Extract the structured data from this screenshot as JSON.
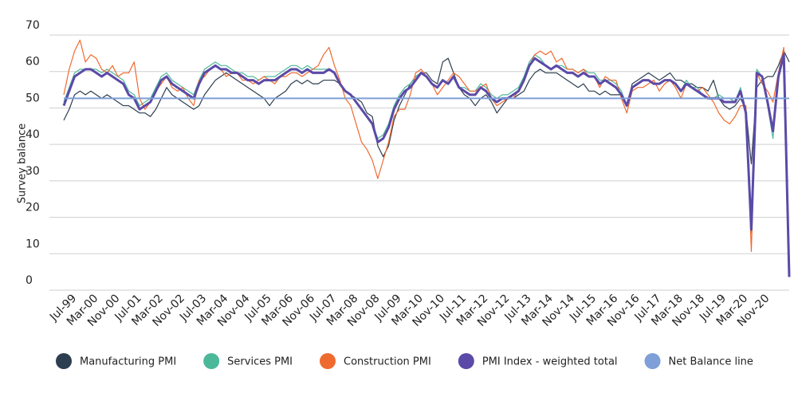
{
  "chart_data": {
    "type": "line",
    "ylabel": "Survey balance",
    "categories": [
      null,
      null,
      "Jul-99",
      null,
      null,
      null,
      "Mar-00",
      null,
      null,
      null,
      "Nov-00",
      null,
      null,
      null,
      "Jul-01",
      null,
      null,
      null,
      "Mar-02",
      null,
      null,
      null,
      "Nov-02",
      null,
      null,
      null,
      "Jul-03",
      null,
      null,
      null,
      "Mar-04",
      null,
      null,
      null,
      "Nov-04",
      null,
      null,
      null,
      "Jul-05",
      null,
      null,
      null,
      "Mar-06",
      null,
      null,
      null,
      "Nov-06",
      null,
      null,
      null,
      "Jul-07",
      null,
      null,
      null,
      "Mar-08",
      null,
      null,
      null,
      "Nov-08",
      null,
      null,
      null,
      "Jul-09",
      null,
      null,
      null,
      "Mar-10",
      null,
      null,
      null,
      "Nov-10",
      null,
      null,
      null,
      "Jul-11",
      null,
      null,
      null,
      "Mar-12",
      null,
      null,
      null,
      "Nov-12",
      null,
      null,
      null,
      "Jul-13",
      null,
      null,
      null,
      "Mar-14",
      null,
      null,
      null,
      "Nov-14",
      null,
      null,
      null,
      "Jul-15",
      null,
      null,
      null,
      "Mar-16",
      null,
      null,
      null,
      "Nov-16",
      null,
      null,
      null,
      "Jul-17",
      null,
      null,
      null,
      "Mar-18",
      null,
      null,
      null,
      "Nov-18",
      null,
      null,
      null,
      "Jul-19",
      null,
      null,
      null,
      "Mar-20",
      null,
      null,
      null,
      "Nov-20",
      null,
      null,
      null,
      null
    ],
    "series": [
      {
        "name": "Manufacturing PMI",
        "color": "#2d3e50",
        "values": [
          44,
          47,
          51,
          52,
          51,
          52,
          51,
          50,
          51,
          50,
          49,
          48,
          48,
          47,
          46,
          46,
          45,
          47,
          50,
          53,
          51,
          50,
          49,
          48,
          47,
          48,
          51,
          53,
          55,
          56,
          57,
          56,
          55,
          54,
          53,
          52,
          51,
          50,
          48,
          50,
          51,
          52,
          54,
          55,
          54,
          55,
          54,
          54,
          55,
          55,
          55,
          54,
          52,
          51,
          50,
          49,
          46,
          45,
          37,
          34,
          37,
          44,
          48,
          51,
          54,
          56,
          57,
          57,
          55,
          54,
          60,
          61,
          57,
          53,
          51,
          50,
          48,
          50,
          51,
          49,
          46,
          48,
          50,
          50,
          51,
          52,
          55,
          57,
          58,
          57,
          57,
          57,
          56,
          55,
          54,
          53,
          54,
          52,
          52,
          51,
          52,
          51,
          51,
          51,
          48,
          54,
          55,
          56,
          57,
          56,
          55,
          56,
          57,
          55,
          55,
          54,
          54,
          53,
          53,
          52,
          55,
          50,
          48,
          47,
          48,
          50,
          47,
          32,
          53,
          55,
          56,
          56,
          59,
          63,
          60
        ]
      },
      {
        "name": "Services PMI",
        "color": "#4cb89a",
        "values": [
          49,
          53,
          57,
          58,
          58,
          58,
          58,
          57,
          58,
          57,
          56,
          55,
          52,
          51,
          48,
          49,
          50,
          53,
          56,
          57,
          55,
          54,
          53,
          52,
          51,
          55,
          58,
          59,
          60,
          59,
          59,
          58,
          57,
          57,
          56,
          56,
          55,
          56,
          56,
          56,
          57,
          58,
          59,
          59,
          58,
          59,
          58,
          58,
          58,
          58,
          57,
          54,
          52,
          51,
          49,
          47,
          45,
          43,
          39,
          40,
          43,
          48,
          51,
          53,
          54,
          56,
          57,
          56,
          54,
          53,
          55,
          54,
          56,
          53,
          53,
          52,
          52,
          54,
          53,
          51,
          50,
          51,
          51,
          52,
          53,
          56,
          60,
          62,
          61,
          59,
          58,
          59,
          59,
          58,
          58,
          57,
          58,
          57,
          57,
          55,
          55,
          55,
          54,
          52,
          48,
          53,
          54,
          55,
          55,
          54,
          54,
          55,
          55,
          54,
          52,
          55,
          53,
          53,
          51,
          50,
          50,
          51,
          50,
          50,
          49,
          53,
          46,
          13,
          58,
          56,
          48,
          39,
          56,
          62,
          1
        ]
      },
      {
        "name": "Construction PMI",
        "color": "#ef6a2e",
        "values": [
          51,
          58,
          63,
          66,
          60,
          62,
          61,
          58,
          57,
          59,
          56,
          57,
          57,
          60,
          50,
          47,
          49,
          52,
          54,
          56,
          53,
          52,
          53,
          50,
          48,
          55,
          56,
          58,
          59,
          58,
          56,
          57,
          57,
          55,
          55,
          54,
          55,
          56,
          55,
          54,
          56,
          56,
          57,
          57,
          56,
          57,
          58,
          59,
          62,
          64,
          59,
          55,
          50,
          48,
          43,
          38,
          36,
          33,
          28,
          33,
          38,
          45,
          47,
          47,
          51,
          57,
          58,
          56,
          54,
          51,
          53,
          55,
          57,
          56,
          54,
          52,
          52,
          53,
          54,
          50,
          48,
          49,
          50,
          50,
          52,
          55,
          59,
          62,
          63,
          62,
          63,
          60,
          61,
          58,
          58,
          57,
          58,
          56,
          56,
          53,
          56,
          55,
          55,
          50,
          46,
          52,
          53,
          53,
          54,
          55,
          52,
          54,
          55,
          53,
          50,
          54,
          53,
          52,
          53,
          51,
          49,
          46,
          44,
          43,
          45,
          48,
          48,
          8,
          57,
          54,
          52,
          49,
          57,
          64,
          2
        ]
      },
      {
        "name": "PMI Index - weighted total",
        "color": "#5b4aa8",
        "width": 3,
        "values": [
          48,
          52,
          56,
          57,
          58,
          58,
          57,
          56,
          57,
          56,
          55,
          54,
          51,
          50,
          47,
          48,
          49,
          52,
          55,
          56,
          54,
          53,
          52,
          51,
          50,
          54,
          57,
          58,
          59,
          58,
          58,
          57,
          57,
          56,
          55,
          55,
          54,
          55,
          55,
          55,
          56,
          57,
          58,
          58,
          57,
          58,
          57,
          57,
          57,
          58,
          57,
          54,
          52,
          51,
          49,
          47,
          45,
          43,
          38,
          39,
          42,
          47,
          50,
          52,
          53,
          55,
          57,
          56,
          54,
          53,
          55,
          54,
          56,
          53,
          52,
          51,
          51,
          53,
          52,
          50,
          49,
          50,
          50,
          51,
          52,
          55,
          59,
          61,
          60,
          59,
          58,
          59,
          58,
          57,
          57,
          56,
          57,
          56,
          56,
          54,
          55,
          54,
          53,
          51,
          48,
          53,
          54,
          55,
          55,
          54,
          54,
          55,
          55,
          54,
          52,
          54,
          53,
          52,
          51,
          50,
          50,
          50,
          49,
          49,
          49,
          52,
          46,
          14,
          57,
          56,
          49,
          41,
          56,
          62,
          1
        ]
      }
    ],
    "reference_line": {
      "name": "Net Balance line",
      "color": "#7f9fd8",
      "value": 50
    },
    "ylim": [
      0,
      70
    ],
    "yticks": [
      0,
      10,
      20,
      30,
      40,
      50,
      60,
      70
    ],
    "grid": true
  }
}
